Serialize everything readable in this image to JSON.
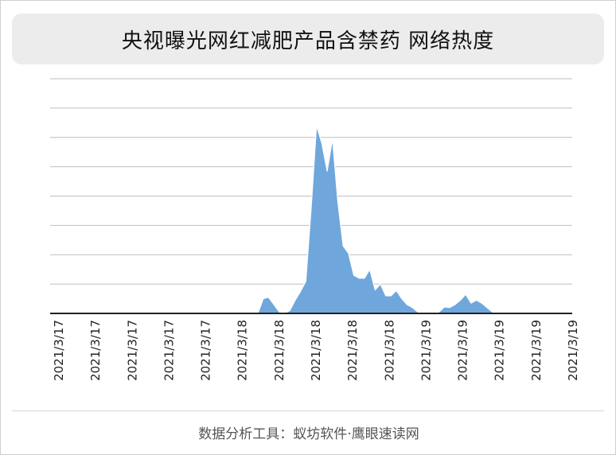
{
  "title": "央视曝光网红减肥产品含禁药 网络热度",
  "footer": "数据分析工具：蚁坊软件·鹰眼速读网",
  "colors": {
    "area": "#6fa7dc",
    "grid": "#bfbfbf",
    "axis": "#222222"
  },
  "chart_data": {
    "type": "area",
    "title": "央视曝光网红减肥产品含禁药 网络热度",
    "xlabel": "",
    "ylabel": "",
    "grid": true,
    "legend": "none",
    "ylim": [
      0,
      8
    ],
    "x_tick_labels": [
      "2021/3/17",
      "2021/3/17",
      "2021/3/17",
      "2021/3/17",
      "2021/3/17",
      "2021/3/18",
      "2021/3/18",
      "2021/3/18",
      "2021/3/18",
      "2021/3/18",
      "2021/3/19",
      "2021/3/19",
      "2021/3/19",
      "2021/3/19",
      "2021/3/19"
    ],
    "series": [
      {
        "values": [
          0,
          0,
          0,
          0,
          0,
          0,
          0,
          0,
          0,
          0,
          0,
          0,
          0,
          0,
          0,
          0,
          0,
          0,
          0,
          0,
          0,
          0,
          0,
          0,
          0,
          0,
          0,
          0,
          0,
          0,
          0.04,
          0.04,
          0,
          0,
          0,
          0,
          0,
          0,
          0,
          0,
          0.5,
          0.55,
          0.3,
          0.05,
          0,
          0.1,
          0.45,
          0.75,
          1.1,
          3.6,
          6.4,
          5.8,
          4.85,
          5.95,
          3.8,
          2.3,
          2.05,
          1.3,
          1.2,
          1.2,
          1.5,
          0.8,
          1.0,
          0.6,
          0.6,
          0.78,
          0.5,
          0.3,
          0.2,
          0.05,
          0,
          0,
          0,
          0.05,
          0.22,
          0.2,
          0.3,
          0.45,
          0.65,
          0.35,
          0.45,
          0.35,
          0.2,
          0.05,
          0,
          0,
          0,
          0,
          0,
          0,
          0,
          0,
          0,
          0,
          0,
          0,
          0,
          0,
          0
        ]
      }
    ]
  }
}
